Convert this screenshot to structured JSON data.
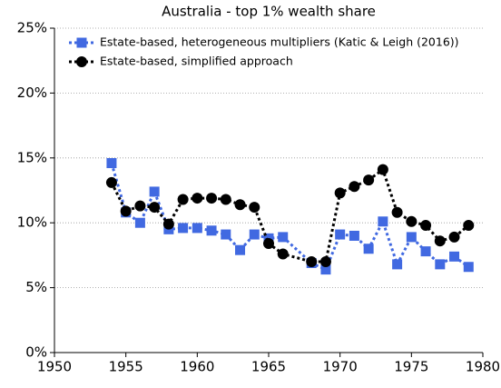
{
  "chart_data": {
    "type": "line",
    "title": "Australia - top 1% wealth share",
    "x": [
      1954,
      1955,
      1956,
      1957,
      1958,
      1959,
      1960,
      1961,
      1962,
      1963,
      1964,
      1965,
      1966,
      1968,
      1969,
      1970,
      1971,
      1972,
      1973,
      1974,
      1975,
      1976,
      1977,
      1978,
      1979
    ],
    "series": [
      {
        "name": "Estate-based, heterogeneous multipliers (Katic & Leigh (2016))",
        "color": "#4169e1",
        "marker": "square",
        "values": [
          14.6,
          10.8,
          10.0,
          12.4,
          9.5,
          9.6,
          9.6,
          9.4,
          9.1,
          7.9,
          9.1,
          8.8,
          8.9,
          6.9,
          6.4,
          9.1,
          9.0,
          8.0,
          10.1,
          6.8,
          8.9,
          7.8,
          6.8,
          7.4,
          6.6
        ]
      },
      {
        "name": "Estate-based, simplified approach",
        "color": "#000000",
        "marker": "circle",
        "values": [
          13.1,
          10.9,
          11.3,
          11.2,
          9.9,
          11.8,
          11.9,
          11.9,
          11.8,
          11.4,
          11.2,
          8.4,
          7.6,
          7.0,
          7.0,
          12.3,
          12.8,
          13.3,
          14.1,
          10.8,
          10.1,
          9.8,
          8.6,
          8.9,
          9.8
        ]
      }
    ],
    "xlim": [
      1950,
      1980
    ],
    "xticks": [
      1950,
      1955,
      1960,
      1965,
      1970,
      1975,
      1980
    ],
    "ylim": [
      0,
      25
    ],
    "yticks": [
      {
        "value": 0,
        "label": "0%"
      },
      {
        "value": 5,
        "label": "5%"
      },
      {
        "value": 10,
        "label": "10%"
      },
      {
        "value": 15,
        "label": "15%"
      },
      {
        "value": 20,
        "label": "20%"
      },
      {
        "value": 25,
        "label": "25%"
      }
    ],
    "grid": true,
    "legend": "upper left"
  }
}
